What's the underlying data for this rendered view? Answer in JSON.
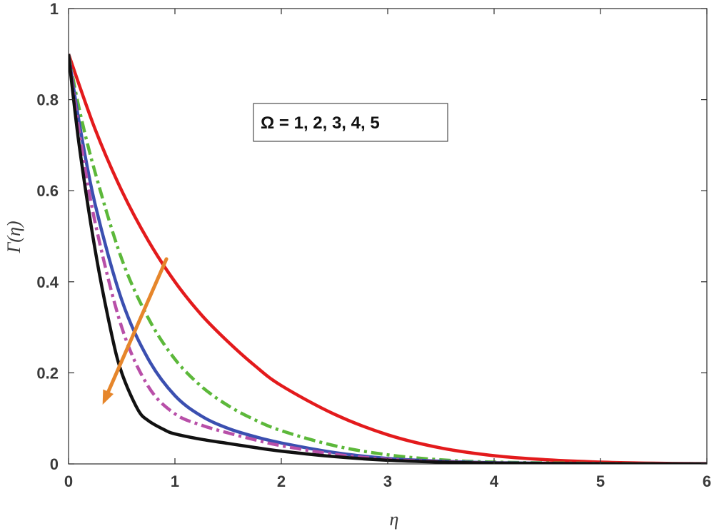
{
  "chart_data": {
    "type": "line",
    "xlabel": "η",
    "ylabel": "Γ(η)",
    "xlim": [
      0,
      6
    ],
    "ylim": [
      0,
      1
    ],
    "x_ticks": [
      "0",
      "1",
      "2",
      "3",
      "4",
      "5",
      "6"
    ],
    "y_ticks": [
      "0",
      "0.2",
      "0.4",
      "0.6",
      "0.8",
      "1"
    ],
    "grid": false,
    "annotation": "Ω = 1, 2, 3, 4, 5",
    "trend_arrow_color": "#e6862b",
    "series": [
      {
        "color": "#e31a1c",
        "dash": "solid",
        "x": [
          0,
          0.25,
          0.5,
          0.75,
          1,
          1.25,
          1.5,
          1.75,
          2,
          2.5,
          3,
          3.5,
          4,
          4.5,
          5,
          5.5,
          6
        ],
        "y": [
          0.9,
          0.735,
          0.6,
          0.49,
          0.4,
          0.327,
          0.268,
          0.216,
          0.172,
          0.109,
          0.064,
          0.035,
          0.018,
          0.009,
          0.004,
          0.0015,
          0.0005
        ]
      },
      {
        "color": "#5cb83a",
        "dash": "dashdot",
        "x": [
          0,
          0.1,
          0.25,
          0.5,
          0.75,
          1,
          1.25,
          1.5,
          1.75,
          2,
          2.5,
          3,
          3.5,
          4,
          5,
          6
        ],
        "y": [
          0.9,
          0.78,
          0.64,
          0.45,
          0.32,
          0.23,
          0.17,
          0.128,
          0.097,
          0.073,
          0.04,
          0.02,
          0.009,
          0.004,
          0.001,
          0.0002
        ]
      },
      {
        "color": "#3b4fb0",
        "dash": "solid",
        "x": [
          0,
          0.1,
          0.25,
          0.5,
          0.75,
          1,
          1.25,
          1.5,
          1.75,
          2,
          2.5,
          3,
          3.5,
          4,
          5,
          6
        ],
        "y": [
          0.9,
          0.75,
          0.57,
          0.36,
          0.23,
          0.15,
          0.105,
          0.078,
          0.06,
          0.046,
          0.025,
          0.012,
          0.006,
          0.0025,
          0.0005,
          0.0001
        ]
      },
      {
        "color": "#b84fa8",
        "dash": "dashdot",
        "x": [
          0,
          0.1,
          0.25,
          0.5,
          0.75,
          1,
          1.25,
          1.5,
          1.75,
          2,
          2.5,
          3,
          3.5,
          4,
          5,
          6
        ],
        "y": [
          0.9,
          0.73,
          0.53,
          0.3,
          0.17,
          0.11,
          0.085,
          0.068,
          0.053,
          0.04,
          0.021,
          0.01,
          0.005,
          0.002,
          0.0004,
          0.0001
        ]
      },
      {
        "color": "#111111",
        "dash": "solid",
        "x": [
          0,
          0.1,
          0.25,
          0.4,
          0.5,
          0.65,
          0.75,
          0.9,
          1,
          1.25,
          1.5,
          1.75,
          2,
          2.5,
          3,
          3.5,
          4,
          5,
          6
        ],
        "y": [
          0.9,
          0.7,
          0.47,
          0.29,
          0.2,
          0.12,
          0.095,
          0.075,
          0.066,
          0.054,
          0.045,
          0.036,
          0.028,
          0.016,
          0.008,
          0.004,
          0.0018,
          0.0004,
          0.0001
        ]
      }
    ],
    "arrow": {
      "from": [
        0.92,
        0.45
      ],
      "to": [
        0.32,
        0.13
      ]
    }
  }
}
